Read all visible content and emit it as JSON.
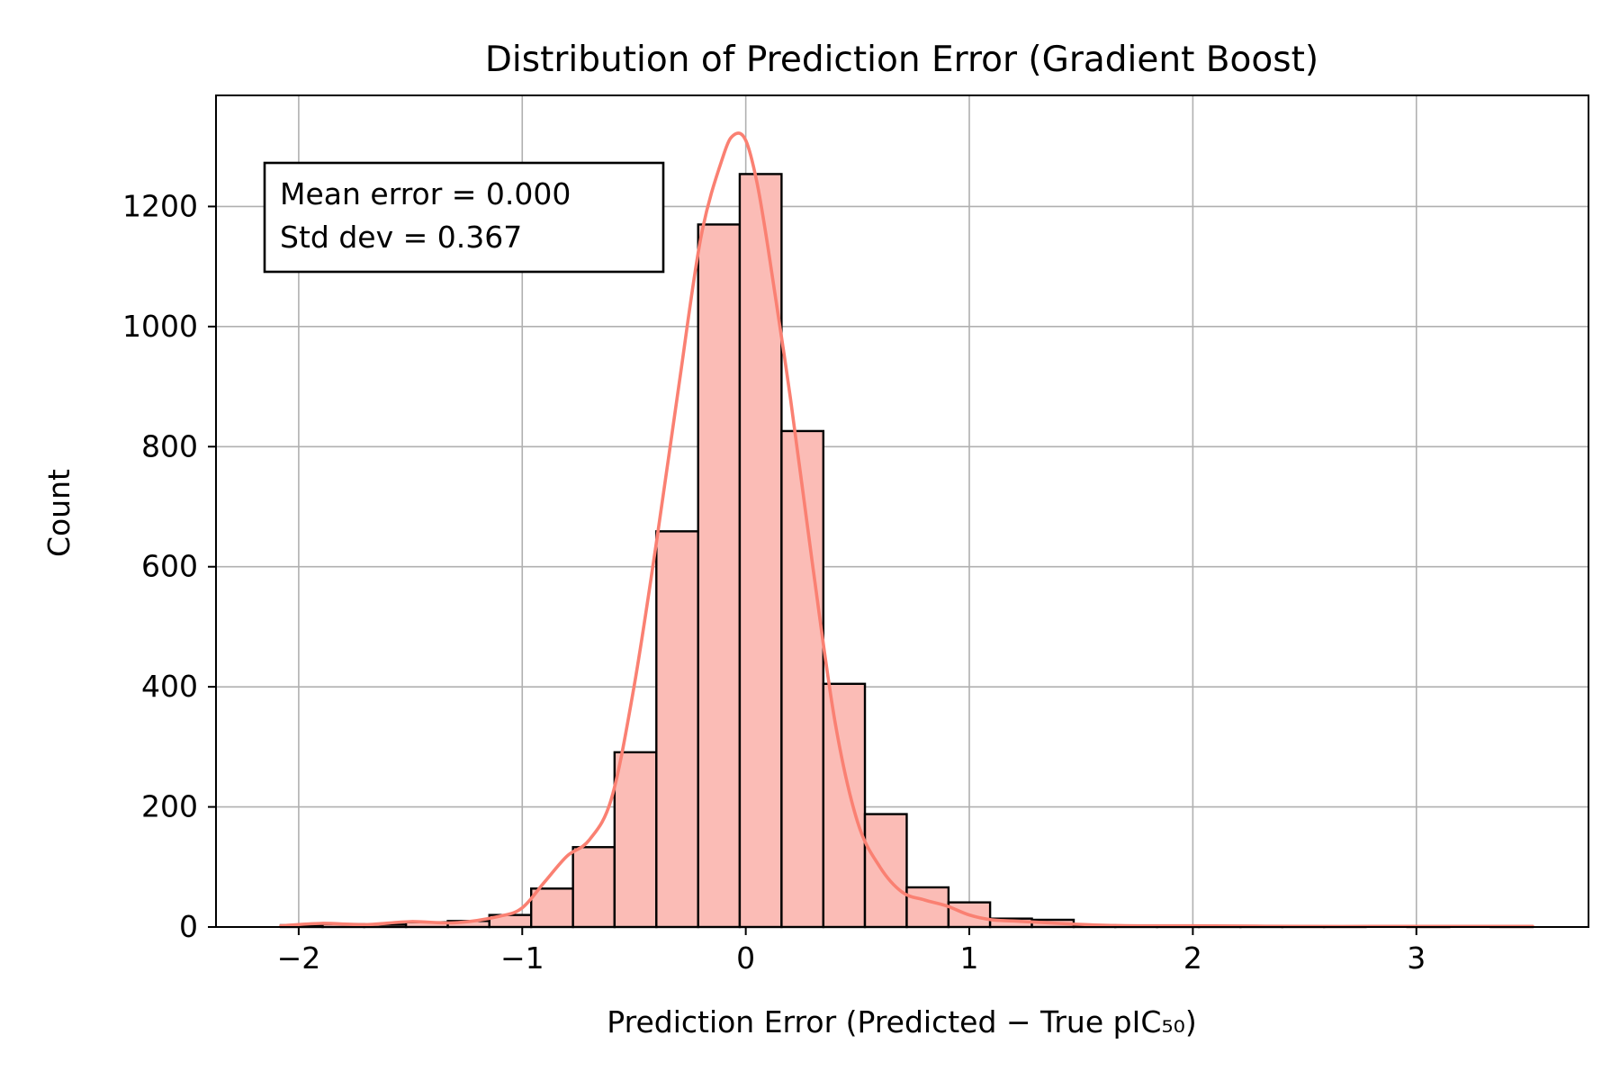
{
  "chart_data": {
    "type": "bar",
    "title": "Distribution of Prediction Error (Gradient Boost)",
    "xlabel": "Prediction Error (Predicted − True pIC₅₀)",
    "ylabel": "Count",
    "xlim": [
      -2.37,
      3.77
    ],
    "ylim": [
      0,
      1385
    ],
    "x_ticks": [
      -2,
      -1,
      0,
      1,
      2,
      3
    ],
    "x_tick_labels": [
      "−2",
      "−1",
      "0",
      "1",
      "2",
      "3"
    ],
    "y_ticks": [
      0,
      200,
      400,
      600,
      800,
      1000,
      1200
    ],
    "y_tick_labels": [
      "0",
      "200",
      "400",
      "600",
      "800",
      "1000",
      "1200"
    ],
    "grid": true,
    "colors": {
      "bar_fill": "#fbbcb6",
      "bar_edge": "#000000",
      "kde": "#fa8072",
      "grid": "#b0b0b0"
    },
    "bins": [
      {
        "x0": -2.08,
        "x1": -1.893,
        "count": 3
      },
      {
        "x0": -1.893,
        "x1": -1.707,
        "count": 5
      },
      {
        "x0": -1.707,
        "x1": -1.52,
        "count": 4
      },
      {
        "x0": -1.52,
        "x1": -1.333,
        "count": 8
      },
      {
        "x0": -1.333,
        "x1": -1.147,
        "count": 10
      },
      {
        "x0": -1.147,
        "x1": -0.96,
        "count": 20
      },
      {
        "x0": -0.96,
        "x1": -0.773,
        "count": 64
      },
      {
        "x0": -0.773,
        "x1": -0.587,
        "count": 133
      },
      {
        "x0": -0.587,
        "x1": -0.4,
        "count": 291
      },
      {
        "x0": -0.4,
        "x1": -0.213,
        "count": 659
      },
      {
        "x0": -0.213,
        "x1": -0.027,
        "count": 1170
      },
      {
        "x0": -0.027,
        "x1": 0.16,
        "count": 1254
      },
      {
        "x0": 0.16,
        "x1": 0.347,
        "count": 826
      },
      {
        "x0": 0.347,
        "x1": 0.533,
        "count": 405
      },
      {
        "x0": 0.533,
        "x1": 0.72,
        "count": 188
      },
      {
        "x0": 0.72,
        "x1": 0.907,
        "count": 66
      },
      {
        "x0": 0.907,
        "x1": 1.093,
        "count": 41
      },
      {
        "x0": 1.093,
        "x1": 1.28,
        "count": 14
      },
      {
        "x0": 1.28,
        "x1": 1.467,
        "count": 12
      },
      {
        "x0": 1.467,
        "x1": 1.653,
        "count": 3
      },
      {
        "x0": 1.653,
        "x1": 1.84,
        "count": 2
      },
      {
        "x0": 1.84,
        "x1": 2.027,
        "count": 2
      },
      {
        "x0": 2.027,
        "x1": 2.213,
        "count": 1
      },
      {
        "x0": 2.213,
        "x1": 2.4,
        "count": 1
      },
      {
        "x0": 2.4,
        "x1": 2.587,
        "count": 1
      },
      {
        "x0": 2.587,
        "x1": 2.773,
        "count": 1
      },
      {
        "x0": 2.773,
        "x1": 2.96,
        "count": 0
      },
      {
        "x0": 2.96,
        "x1": 3.147,
        "count": 1
      },
      {
        "x0": 3.147,
        "x1": 3.333,
        "count": 0
      },
      {
        "x0": 3.333,
        "x1": 3.52,
        "count": 1
      }
    ],
    "kde": {
      "x": [
        -2.08,
        -1.9,
        -1.7,
        -1.5,
        -1.3,
        -1.1,
        -1.0,
        -0.9,
        -0.8,
        -0.7,
        -0.6,
        -0.5,
        -0.4,
        -0.3,
        -0.2,
        -0.1,
        -0.05,
        0.0,
        0.05,
        0.1,
        0.2,
        0.3,
        0.4,
        0.5,
        0.6,
        0.7,
        0.8,
        0.9,
        1.0,
        1.1,
        1.2,
        1.4,
        1.6,
        1.8,
        2.0,
        2.5,
        3.0,
        3.52
      ],
      "y": [
        2,
        6,
        4,
        9,
        7,
        18,
        32,
        75,
        118,
        145,
        215,
        400,
        640,
        900,
        1150,
        1285,
        1320,
        1310,
        1240,
        1130,
        880,
        600,
        340,
        175,
        100,
        58,
        45,
        35,
        20,
        12,
        10,
        6,
        3,
        2,
        2,
        1,
        1,
        1
      ]
    },
    "annotation": {
      "lines": [
        "Mean error = 0.000",
        "Std dev = 0.367"
      ]
    }
  }
}
